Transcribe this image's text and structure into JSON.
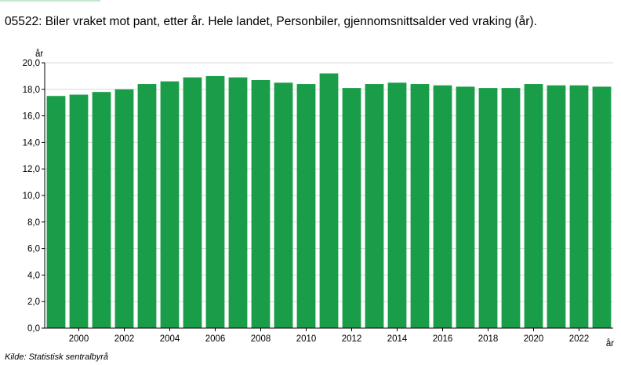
{
  "title": "05522: Biler vraket mot pant, etter år. Hele landet, Personbiler, gjennomsnittsalder ved vraking (år).",
  "source": "Kilde:  Statistisk sentralbyrå",
  "colors": {
    "bar": "#1a9d49",
    "grid": "#d9d9d9",
    "axis": "#000000",
    "accent": "#c6e8cf"
  },
  "chart_data": {
    "type": "bar",
    "title": "05522: Biler vraket mot pant, etter år. Hele landet, Personbiler, gjennomsnittsalder ved vraking (år).",
    "xlabel": "år",
    "ylabel": "år",
    "ylim": [
      0,
      20
    ],
    "yticks": [
      "0,0",
      "2,0",
      "4,0",
      "6,0",
      "8,0",
      "10,0",
      "12,0",
      "14,0",
      "16,0",
      "18,0",
      "20,0"
    ],
    "xtick_labels": [
      "2000",
      "2002",
      "2004",
      "2006",
      "2008",
      "2010",
      "2012",
      "2014",
      "2016",
      "2018",
      "2020",
      "2022"
    ],
    "categories": [
      "1999",
      "2000",
      "2001",
      "2002",
      "2003",
      "2004",
      "2005",
      "2006",
      "2007",
      "2008",
      "2009",
      "2010",
      "2011",
      "2012",
      "2013",
      "2014",
      "2015",
      "2016",
      "2017",
      "2018",
      "2019",
      "2020",
      "2021",
      "2022",
      "2023"
    ],
    "values": [
      17.5,
      17.6,
      17.8,
      18.0,
      18.4,
      18.6,
      18.9,
      19.0,
      18.9,
      18.7,
      18.5,
      18.4,
      19.2,
      18.1,
      18.4,
      18.5,
      18.4,
      18.3,
      18.2,
      18.1,
      18.1,
      18.4,
      18.3,
      18.3,
      18.2
    ],
    "grid": true,
    "legend": "none"
  }
}
